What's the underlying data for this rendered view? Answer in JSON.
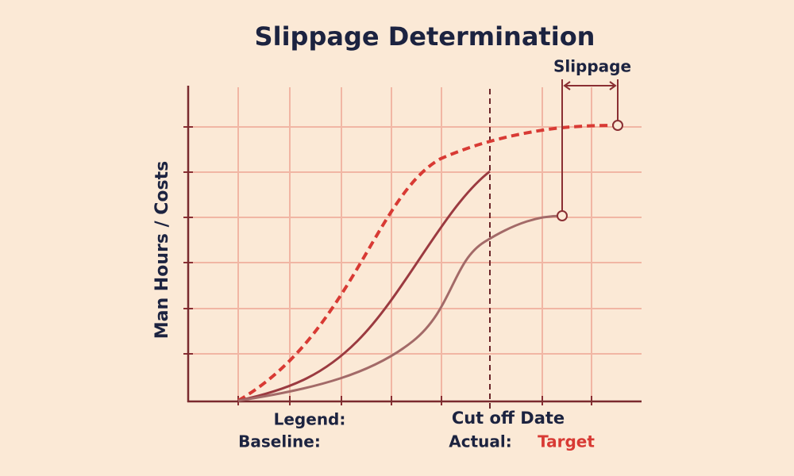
{
  "title": "Slippage Determination",
  "slippage_label": "Slippage",
  "y_axis_label": "Man Hours / Costs",
  "legend": {
    "heading": "Legend:",
    "baseline": "Baseline:",
    "actual": "Actual:",
    "target": "Target"
  },
  "cutoff_label": "Cut off Date"
}
